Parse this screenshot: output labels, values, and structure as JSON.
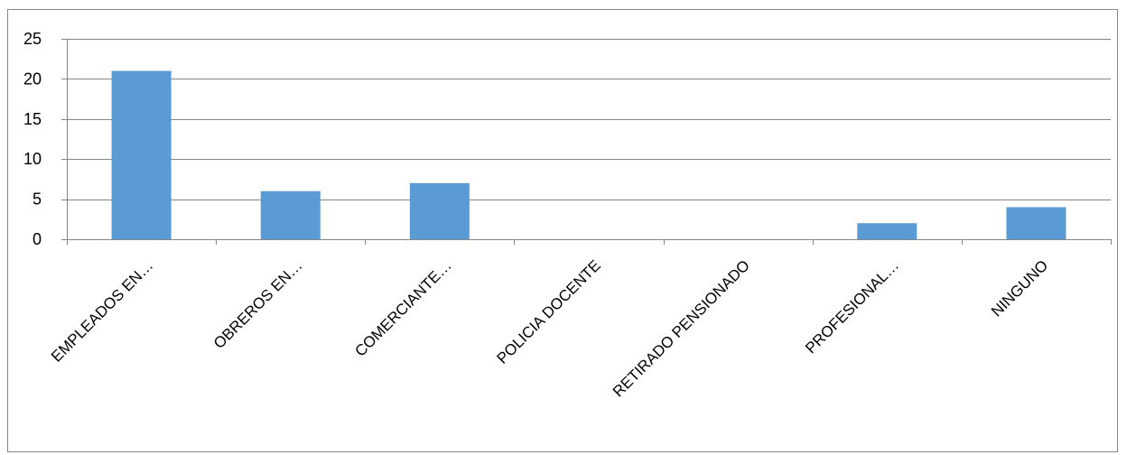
{
  "chart_data": {
    "type": "bar",
    "categories": [
      "EMPLEADOS EN…",
      "OBREROS EN…",
      "COMERCIANTE…",
      "POLICIA DOCENTE",
      "RETIRADO PENSIONADO",
      "PROFESIONAL…",
      "NINGUNO"
    ],
    "values": [
      21,
      6,
      7,
      0,
      0,
      2,
      4
    ],
    "ylim": [
      0,
      25
    ],
    "yticks": [
      0,
      5,
      10,
      15,
      20,
      25
    ],
    "grid": true,
    "legend": "none",
    "colors": {
      "bar": "#5b9bd5",
      "grid": "#868686",
      "axis": "#868686",
      "border": "#868686"
    }
  }
}
